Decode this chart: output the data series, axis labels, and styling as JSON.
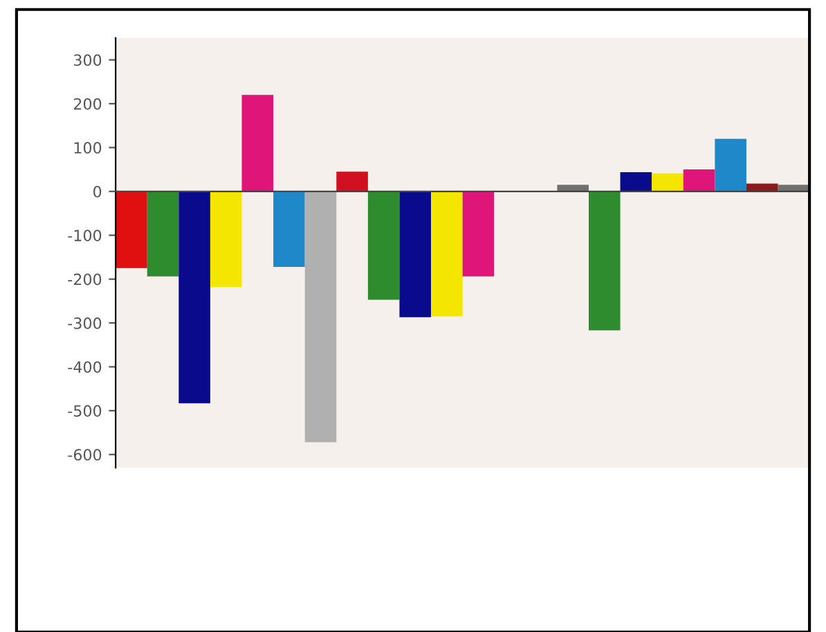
{
  "chart_data": {
    "type": "bar",
    "categories": [
      null,
      null,
      null,
      null,
      null,
      null,
      null,
      null,
      null,
      null,
      null,
      null,
      null,
      null,
      null,
      null,
      null,
      null,
      null,
      null,
      null,
      null
    ],
    "values": [
      -175,
      -194,
      -483,
      -218,
      220,
      -172,
      -572,
      45,
      -247,
      -287,
      -285,
      -194,
      null,
      null,
      15,
      -317,
      44,
      41,
      50,
      120,
      18,
      15
    ],
    "colors": [
      "#e01010",
      "#2e8b2e",
      "#0a0a8c",
      "#f5e600",
      "#e0157a",
      "#1e88c8",
      "#b0b0b0",
      "#d01020",
      "#2e8b2e",
      "#0a0a8c",
      "#f5e600",
      "#e0157a",
      "#b0b0b0",
      "#b0b0b0",
      "#707070",
      "#2e8b2e",
      "#0a0a8c",
      "#f5e600",
      "#e0157a",
      "#1e88c8",
      "#8b1a1a",
      "#707070"
    ],
    "ylim": [
      -630,
      350
    ],
    "yticks": [
      -600,
      -500,
      -400,
      -300,
      -200,
      -100,
      0,
      100,
      200,
      300
    ],
    "legend": false
  }
}
